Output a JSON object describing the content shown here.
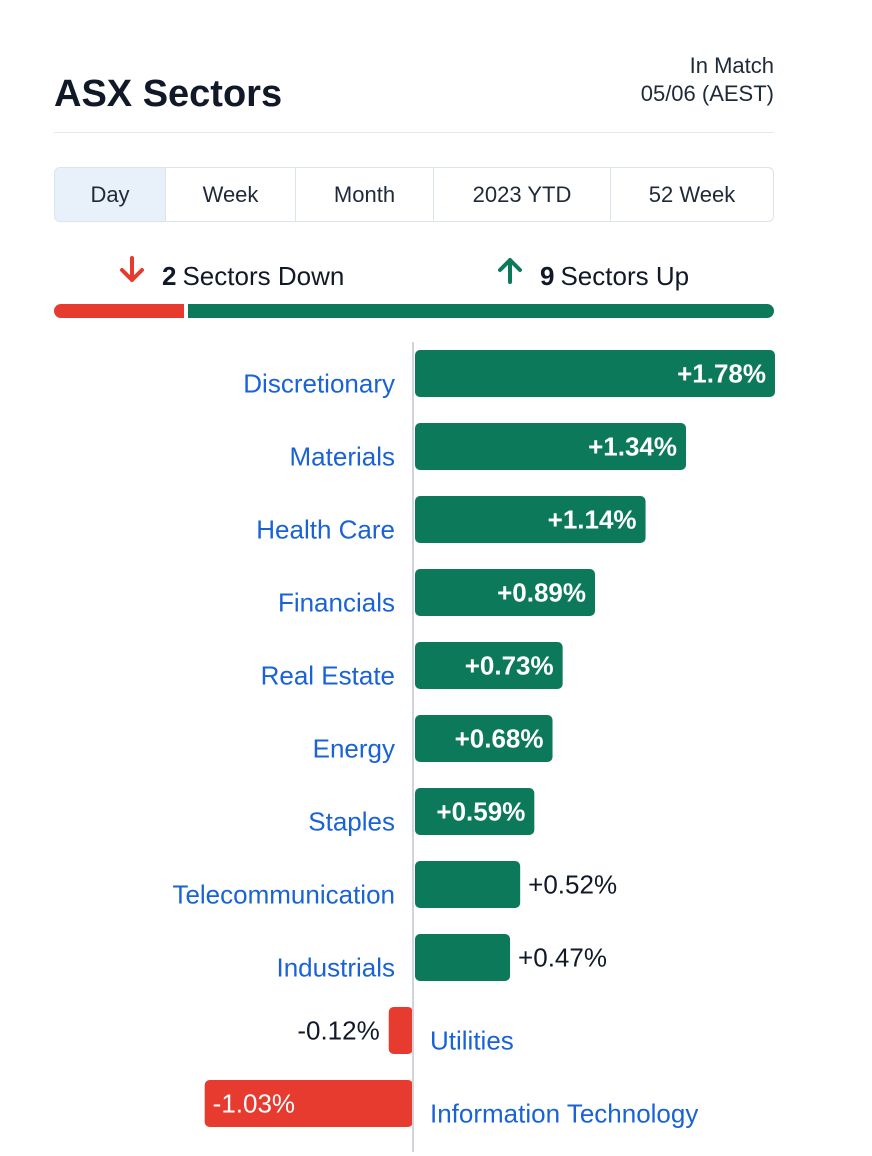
{
  "header": {
    "title": "ASX Sectors",
    "status_line1": "In Match",
    "status_line2": "05/06 (AEST)"
  },
  "tabs": [
    {
      "label": "Day",
      "active": true
    },
    {
      "label": "Week",
      "active": false
    },
    {
      "label": "Month",
      "active": false
    },
    {
      "label": "2023 YTD",
      "active": false
    },
    {
      "label": "52 Week",
      "active": false
    }
  ],
  "summary": {
    "down_count": "2",
    "down_label": "Sectors Down",
    "up_count": "9",
    "up_label": "Sectors Up",
    "down_icon": "arrow-down-icon",
    "up_icon": "arrow-up-icon"
  },
  "colors": {
    "positive": "#0c7a5a",
    "negative": "#e63b2e",
    "link": "#1a63d6"
  },
  "chart_data": {
    "type": "bar",
    "orientation": "horizontal-diverging",
    "categories": [
      "Discretionary",
      "Materials",
      "Health Care",
      "Financials",
      "Real Estate",
      "Energy",
      "Staples",
      "Telecommunication",
      "Industrials",
      "Utilities",
      "Information Technology"
    ],
    "values": [
      1.78,
      1.34,
      1.14,
      0.89,
      0.73,
      0.68,
      0.59,
      0.52,
      0.47,
      -0.12,
      -1.03
    ],
    "value_labels": [
      "+1.78%",
      "+1.34%",
      "+1.14%",
      "+0.89%",
      "+0.73%",
      "+0.68%",
      "+0.59%",
      "+0.52%",
      "+0.47%",
      "-0.12%",
      "-1.03%"
    ],
    "unit": "%",
    "max_abs": 1.78
  }
}
